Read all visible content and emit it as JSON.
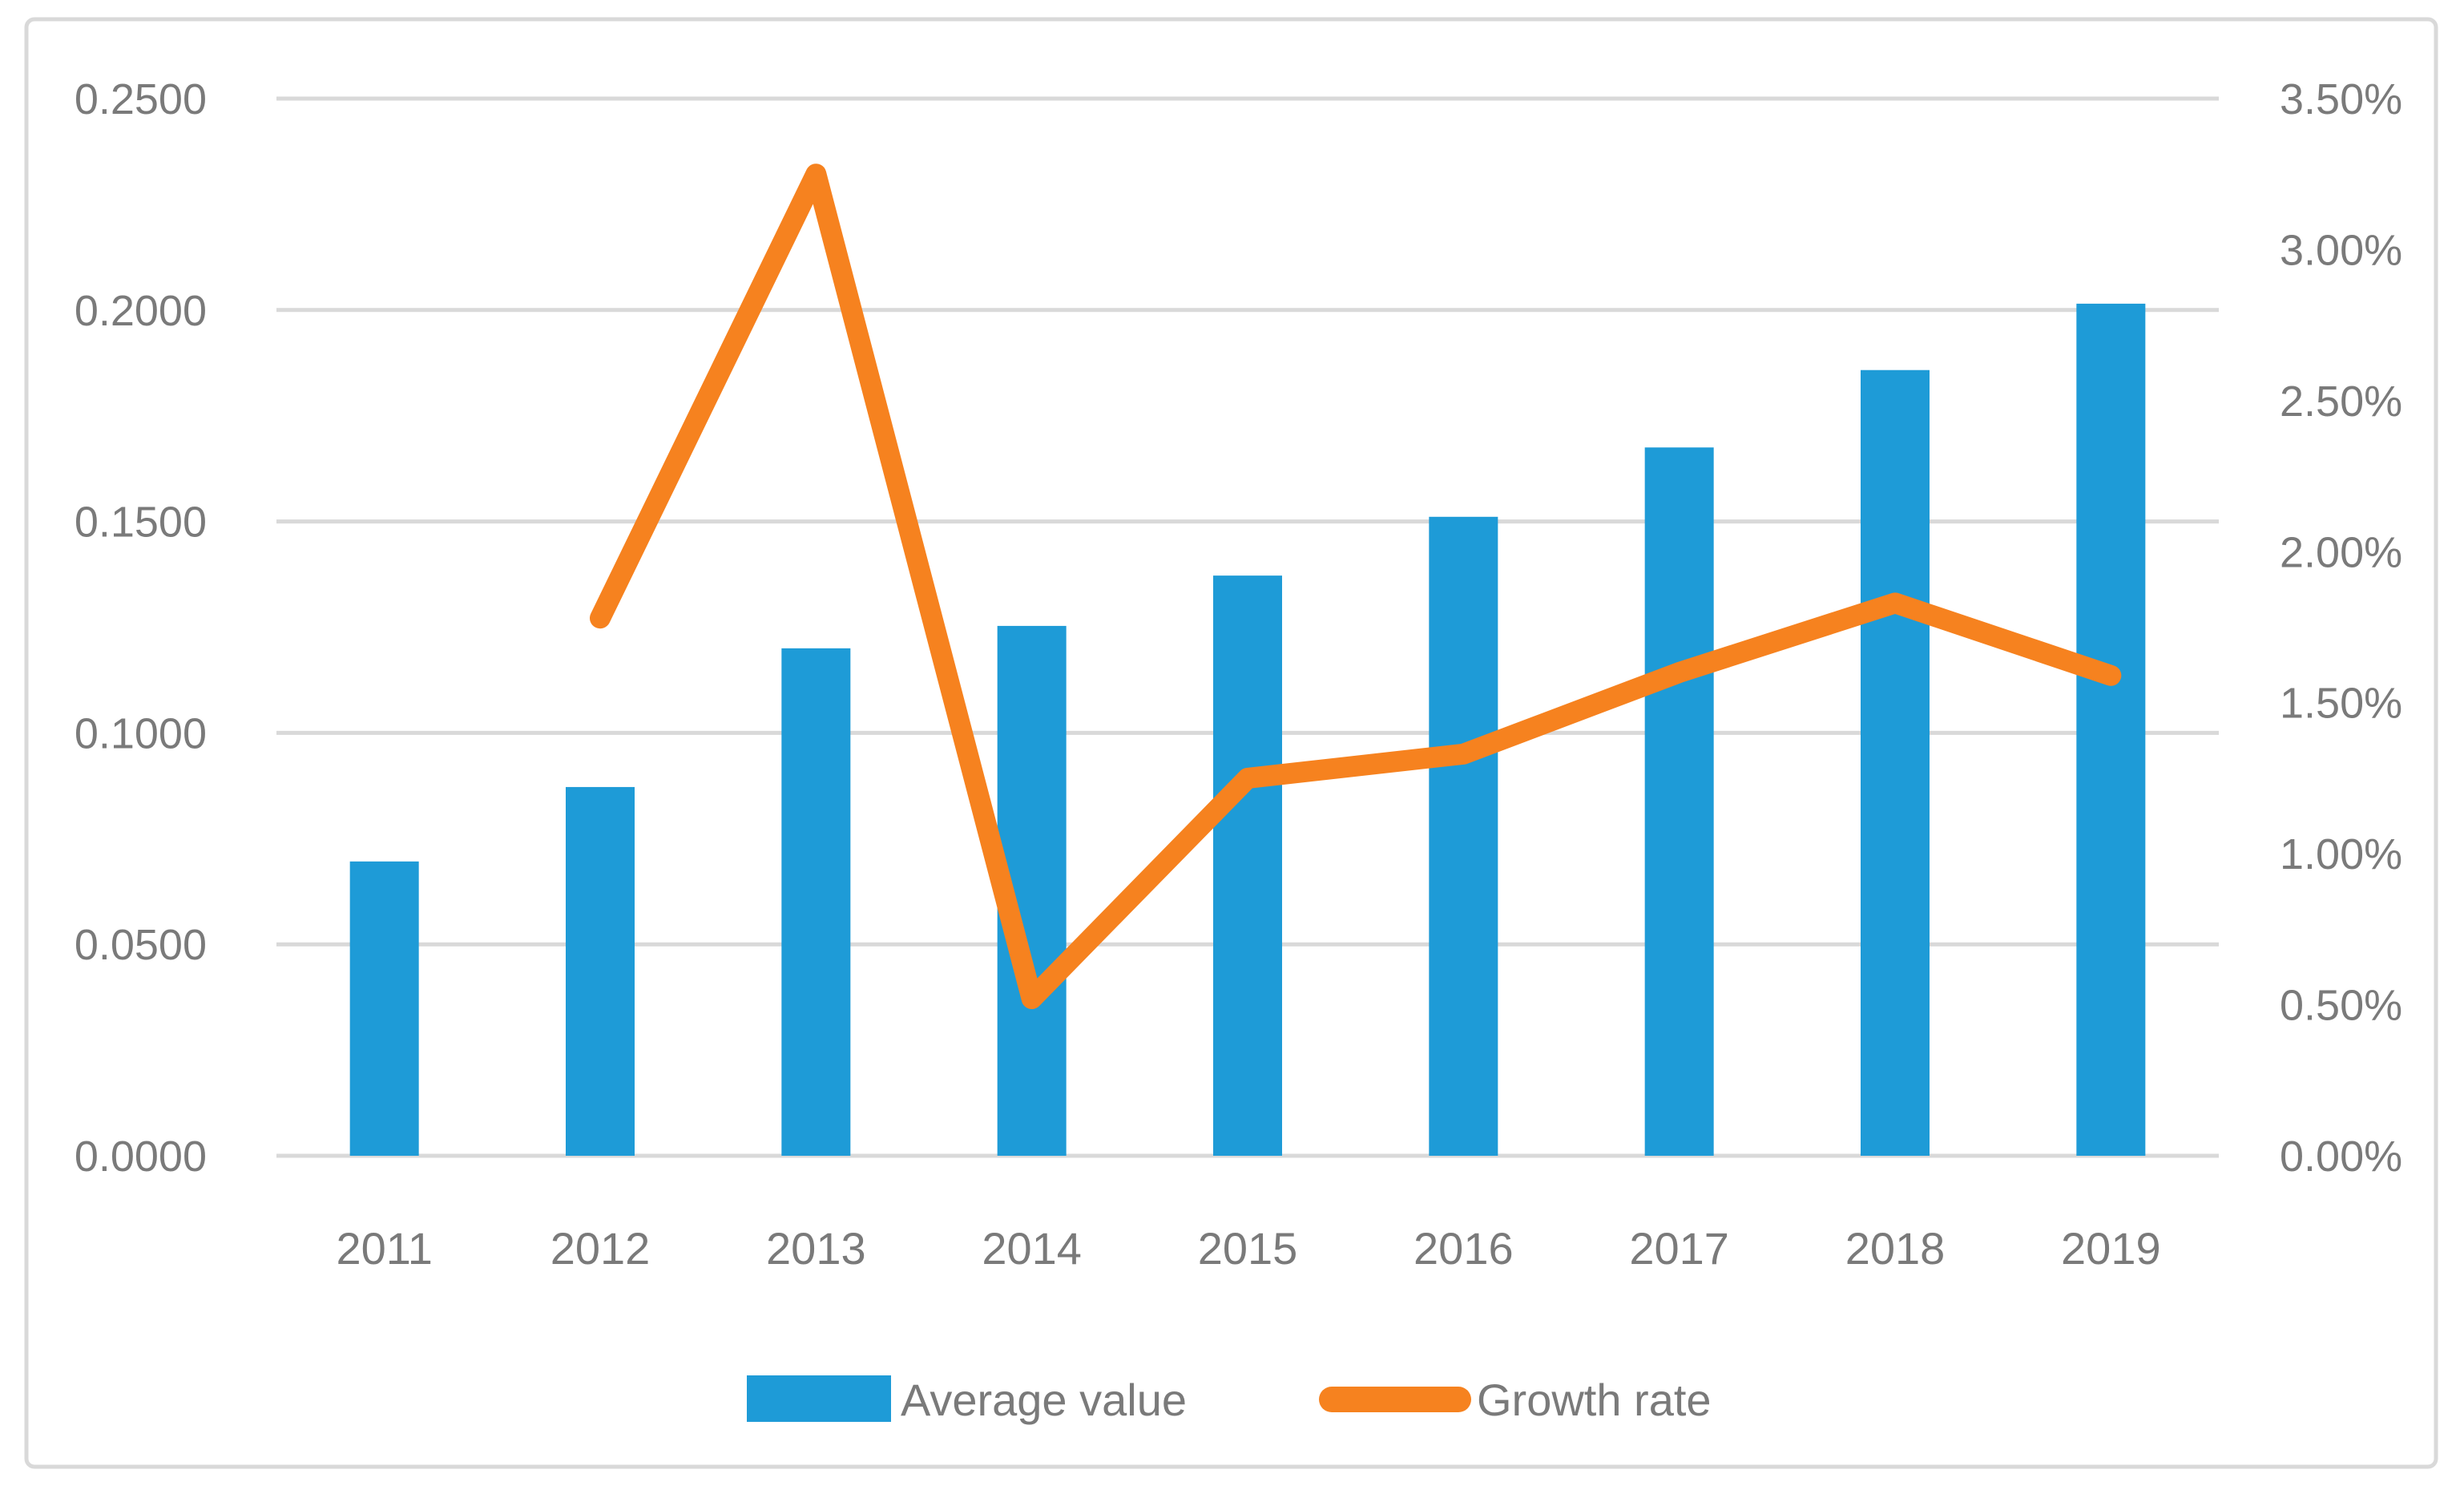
{
  "chart_data": {
    "type": "bar+line combo",
    "title": "",
    "categories": [
      "2011",
      "2012",
      "2013",
      "2014",
      "2015",
      "2016",
      "2017",
      "2018",
      "2019"
    ],
    "series": [
      {
        "name": "Average value",
        "type": "bar",
        "axis": "left",
        "color": "#1e9bd7",
        "values": [
          0.0696,
          0.0872,
          0.12,
          0.1253,
          0.1372,
          0.1511,
          0.1675,
          0.1858,
          0.2015
        ]
      },
      {
        "name": "Growth rate",
        "type": "line",
        "axis": "right",
        "color": "#f6821f",
        "values_percent": [
          null,
          1.78,
          3.25,
          0.52,
          1.25,
          1.33,
          1.6,
          1.83,
          1.59
        ]
      }
    ],
    "left_axis": {
      "min": 0,
      "max": 0.25,
      "step": 0.05,
      "tick_labels": [
        "0.0000",
        "0.0500",
        "0.1000",
        "0.1500",
        "0.2000",
        "0.2500"
      ]
    },
    "right_axis": {
      "min": 0,
      "max": 3.5,
      "step": 0.5,
      "tick_labels": [
        "0.00%",
        "0.50%",
        "1.00%",
        "1.50%",
        "2.00%",
        "2.50%",
        "3.00%",
        "3.50%"
      ]
    },
    "legend": {
      "position": "bottom",
      "entries": [
        "Average value",
        "Growth rate"
      ]
    },
    "grid": {
      "horizontal": true,
      "color": "#d9d9d9"
    },
    "frame_border_color": "#d9d9d9",
    "label_color": "#7a7a7a"
  }
}
